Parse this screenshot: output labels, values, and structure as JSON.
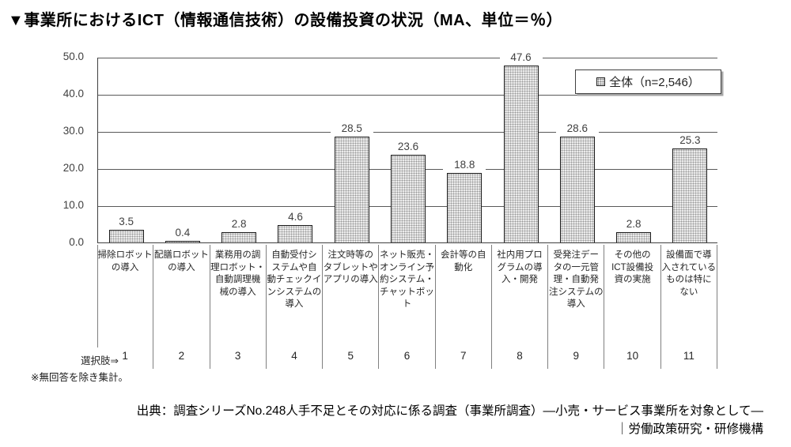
{
  "title": "▼事業所におけるICT（情報通信技術）の設備投資の状況（MA、単位＝％）",
  "legend": {
    "label": "全体（n=2,546）"
  },
  "choice_label": "選択肢⇒",
  "footnote": "※無回答を除き集計。",
  "source": {
    "line1": "出典：調査シリーズNo.248人手不足とその対応に係る調査（事業所調査）―小売・サービス事業所を対象として―",
    "line2": "｜労働政策研究・研修機構"
  },
  "chart_data": {
    "type": "bar",
    "title": "事業所におけるICT（情報通信技術）の設備投資の状況（MA、単位＝％）",
    "series": [
      {
        "name": "全体 (n=2,546)",
        "values": [
          3.5,
          0.4,
          2.8,
          4.6,
          28.5,
          23.6,
          18.8,
          47.6,
          28.6,
          2.8,
          25.3
        ]
      }
    ],
    "categories": [
      "掃除ロボットの導入",
      "配膳ロボットの導入",
      "業務用の調理ロボット・自動調理機械の導入",
      "自動受付システムや自動チェックインシステムの導入",
      "注文時等のタブレットやアプリの導入",
      "ネット販売・オンライン予約システム・チャットボット",
      "会計等の自動化",
      "社内用プログラムの導入・開発",
      "受発注データの一元管理・自動発注システムの導入",
      "その他のICT設備投資の実施",
      "設備面で導入されているものは特にない"
    ],
    "category_lines": [
      [
        "掃除ロボット",
        "の導入"
      ],
      [
        "配膳ロボット",
        "の導入"
      ],
      [
        "業務用の調",
        "理ロボット・",
        "自動調理機",
        "械の導入"
      ],
      [
        "自動受付シ",
        "ステムや自",
        "動チェックイ",
        "ンシステムの",
        "導入"
      ],
      [
        "注文時等の",
        "タブレットや",
        "アプリの導入"
      ],
      [
        "ネット販売・",
        "オンライン予",
        "約システム・",
        "チャットボット"
      ],
      [
        "会計等の自",
        "動化"
      ],
      [
        "社内用プロ",
        "グラムの導",
        "入・開発"
      ],
      [
        "受発注デー",
        "タの一元管",
        "理・自動発",
        "注システムの",
        "導入"
      ],
      [
        "その他の",
        "ICT設備投",
        "資の実施"
      ],
      [
        "設備面で導",
        "入されている",
        "ものは特に",
        "ない"
      ]
    ],
    "choice_numbers": [
      "1",
      "2",
      "3",
      "4",
      "5",
      "6",
      "7",
      "8",
      "9",
      "10",
      "11"
    ],
    "y_ticks": [
      "0.0",
      "10.0",
      "20.0",
      "30.0",
      "40.0",
      "50.0"
    ],
    "ylim": [
      0,
      50
    ],
    "xlabel": "",
    "ylabel": "",
    "grid": true,
    "legend_position": "top-right",
    "bar_fill": "#ebebeb",
    "bar_pattern_dot": "#999999",
    "bar_border": "#1a1a1a",
    "axis_color": "#404040"
  }
}
